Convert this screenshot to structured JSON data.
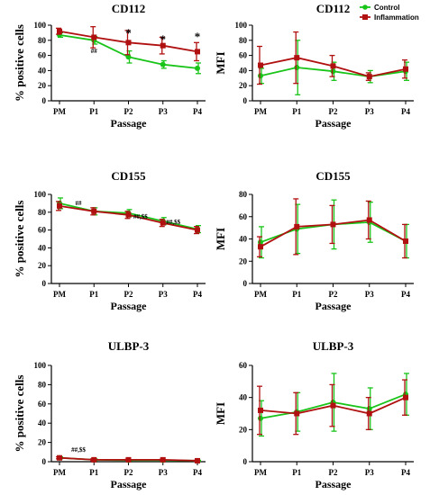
{
  "legend": [
    {
      "label": "Control",
      "color": "#19c419",
      "marker": "circle"
    },
    {
      "label": "Inflammation",
      "color": "#b01010",
      "marker": "square"
    }
  ],
  "chart_data": [
    {
      "id": "cd112-pct",
      "type": "line",
      "title": "CD112",
      "xlabel": "Passage",
      "ylabel": "% positive cells",
      "categories": [
        "PM",
        "P1",
        "P2",
        "P3",
        "P4"
      ],
      "ylim": [
        0,
        100
      ],
      "yticks": [
        0,
        20,
        40,
        60,
        80,
        100
      ],
      "series": [
        {
          "name": "Control",
          "color": "#19c419",
          "values": [
            87,
            80,
            58,
            48,
            43
          ],
          "errors": [
            3,
            5,
            8,
            5,
            7
          ]
        },
        {
          "name": "Inflammation",
          "color": "#b01010",
          "values": [
            92,
            84,
            77,
            73,
            65
          ],
          "errors": [
            4,
            14,
            16,
            11,
            12
          ]
        }
      ],
      "annotations": [
        {
          "text": "##",
          "x": 1
        },
        {
          "text": "*",
          "x": 2
        },
        {
          "text": "*",
          "x": 3
        },
        {
          "text": "*",
          "x": 4
        }
      ]
    },
    {
      "id": "cd112-mfi",
      "type": "line",
      "title": "CD112",
      "xlabel": "Passage",
      "ylabel": "MFI",
      "categories": [
        "PM",
        "P1",
        "P2",
        "P3",
        "P4"
      ],
      "ylim": [
        0,
        100
      ],
      "yticks": [
        0,
        20,
        40,
        60,
        80,
        100
      ],
      "series": [
        {
          "name": "Control",
          "color": "#19c419",
          "values": [
            33,
            44,
            39,
            32,
            39
          ],
          "errors": [
            10,
            36,
            12,
            8,
            12
          ]
        },
        {
          "name": "Inflammation",
          "color": "#b01010",
          "values": [
            47,
            57,
            46,
            32,
            42
          ],
          "errors": [
            25,
            34,
            14,
            5,
            12
          ]
        }
      ],
      "annotations": []
    },
    {
      "id": "cd155-pct",
      "type": "line",
      "title": "CD155",
      "xlabel": "Passage",
      "ylabel": "% positive cells",
      "categories": [
        "PM",
        "P1",
        "P2",
        "P3",
        "P4"
      ],
      "ylim": [
        0,
        100
      ],
      "yticks": [
        0,
        20,
        40,
        60,
        80,
        100
      ],
      "series": [
        {
          "name": "Control",
          "color": "#19c419",
          "values": [
            90,
            81,
            79,
            70,
            61
          ],
          "errors": [
            6,
            4,
            4,
            4,
            4
          ]
        },
        {
          "name": "Inflammation",
          "color": "#b01010",
          "values": [
            87,
            81,
            77,
            68,
            60
          ],
          "errors": [
            5,
            4,
            4,
            4,
            4
          ]
        }
      ],
      "annotations": [
        {
          "text": "##",
          "x": 0.55
        },
        {
          "text": "##,$$",
          "x": 2.35
        },
        {
          "text": "##,$$",
          "x": 3.3
        }
      ]
    },
    {
      "id": "cd155-mfi",
      "type": "line",
      "title": "CD155",
      "xlabel": "Passage",
      "ylabel": "MFI",
      "categories": [
        "PM",
        "P1",
        "P2",
        "P3",
        "P4"
      ],
      "ylim": [
        0,
        80
      ],
      "yticks": [
        0,
        20,
        40,
        60,
        80
      ],
      "series": [
        {
          "name": "Control",
          "color": "#19c419",
          "values": [
            37,
            49,
            53,
            55,
            38
          ],
          "errors": [
            14,
            22,
            22,
            18,
            15
          ]
        },
        {
          "name": "Inflammation",
          "color": "#b01010",
          "values": [
            33,
            51,
            53,
            57,
            38
          ],
          "errors": [
            9,
            25,
            17,
            17,
            15
          ]
        }
      ],
      "annotations": []
    },
    {
      "id": "ulbp3-pct",
      "type": "line",
      "title": "ULBP-3",
      "xlabel": "Passage",
      "ylabel": "% positive cells",
      "categories": [
        "PM",
        "P1",
        "P2",
        "P3",
        "P4"
      ],
      "ylim": [
        0,
        100
      ],
      "yticks": [
        0,
        20,
        40,
        60,
        80,
        100
      ],
      "series": [
        {
          "name": "Control",
          "color": "#19c419",
          "values": [
            4,
            2,
            1.5,
            1.5,
            1
          ],
          "errors": [
            1,
            1,
            0.5,
            0.5,
            0.5
          ]
        },
        {
          "name": "Inflammation",
          "color": "#b01010",
          "values": [
            4,
            2,
            2,
            2,
            1
          ],
          "errors": [
            1,
            1,
            0.5,
            0.5,
            0.5
          ]
        }
      ],
      "annotations": [
        {
          "text": "##,$$",
          "x": 0.55
        }
      ]
    },
    {
      "id": "ulbp3-mfi",
      "type": "line",
      "title": "ULBP-3",
      "xlabel": "Passage",
      "ylabel": "MFI",
      "categories": [
        "PM",
        "P1",
        "P2",
        "P3",
        "P4"
      ],
      "ylim": [
        0,
        60
      ],
      "yticks": [
        0,
        20,
        40,
        60
      ],
      "series": [
        {
          "name": "Control",
          "color": "#19c419",
          "values": [
            27,
            31,
            37,
            33,
            42
          ],
          "errors": [
            11,
            12,
            18,
            13,
            13
          ]
        },
        {
          "name": "Inflammation",
          "color": "#b01010",
          "values": [
            32,
            30,
            35,
            30,
            40
          ],
          "errors": [
            15,
            13,
            13,
            10,
            11
          ]
        }
      ],
      "annotations": []
    }
  ]
}
